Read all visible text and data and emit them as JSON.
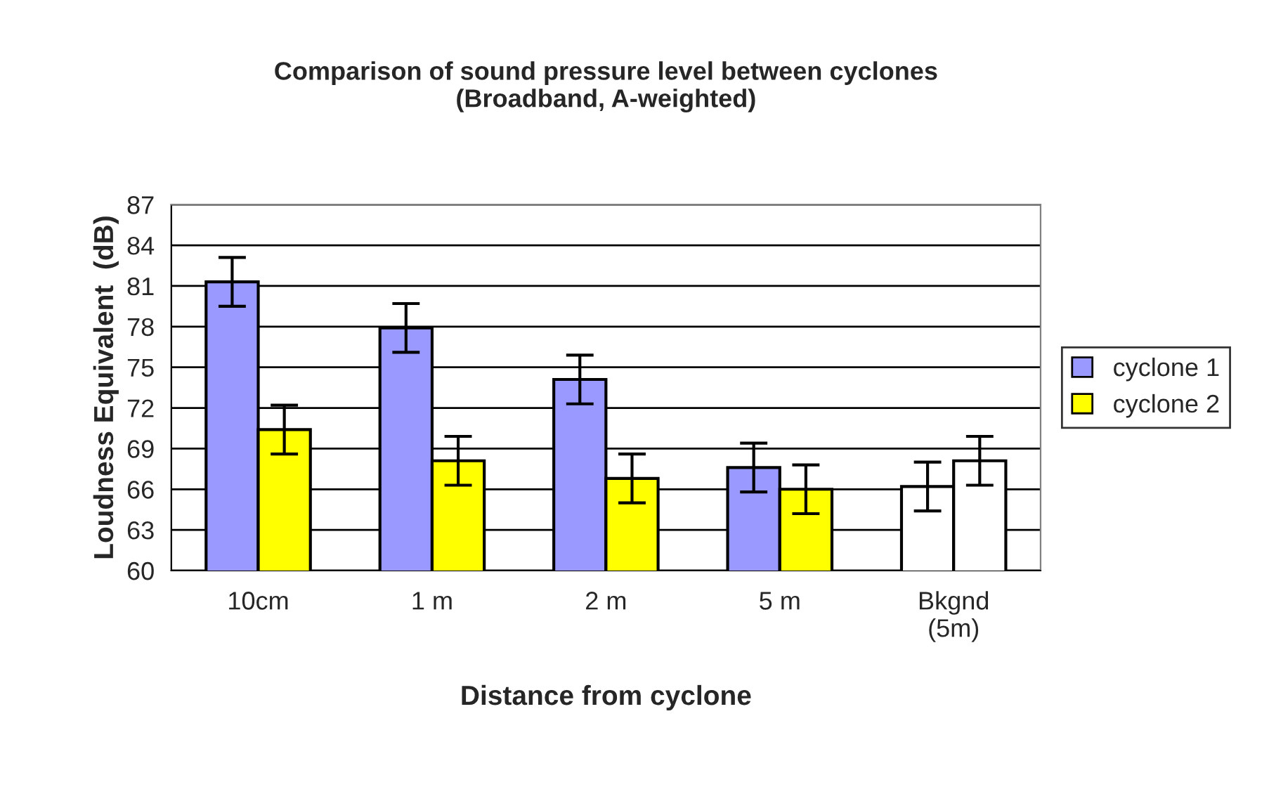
{
  "chart_data": {
    "type": "bar",
    "title": "Comparison of sound pressure level between cyclones\n(Broadband, A-weighted)",
    "xlabel": "Distance from cyclone",
    "ylabel": "Loudness Equivalent  (dB)",
    "categories": [
      "10cm",
      "1 m",
      "2 m",
      "5 m",
      "Bkgnd\n(5m)"
    ],
    "series": [
      {
        "name": "cyclone 1",
        "color": "#9999ff",
        "colors": [
          "#9999ff",
          "#9999ff",
          "#9999ff",
          "#9999ff",
          "#ffffff"
        ],
        "values": [
          81.3,
          77.9,
          74.1,
          67.6,
          66.2
        ],
        "errors": [
          1.8,
          1.8,
          1.8,
          1.8,
          1.8
        ]
      },
      {
        "name": "cyclone 2",
        "color": "#ffff00",
        "colors": [
          "#ffff00",
          "#ffff00",
          "#ffff00",
          "#ffff00",
          "#ffffff"
        ],
        "values": [
          70.4,
          68.1,
          66.8,
          66.0,
          68.1
        ],
        "errors": [
          1.8,
          1.8,
          1.8,
          1.8,
          1.8
        ]
      }
    ],
    "ylim": [
      60,
      87
    ],
    "yticks": [
      60,
      63,
      66,
      69,
      72,
      75,
      78,
      81,
      84,
      87
    ],
    "grid": "y",
    "legend": "right"
  }
}
